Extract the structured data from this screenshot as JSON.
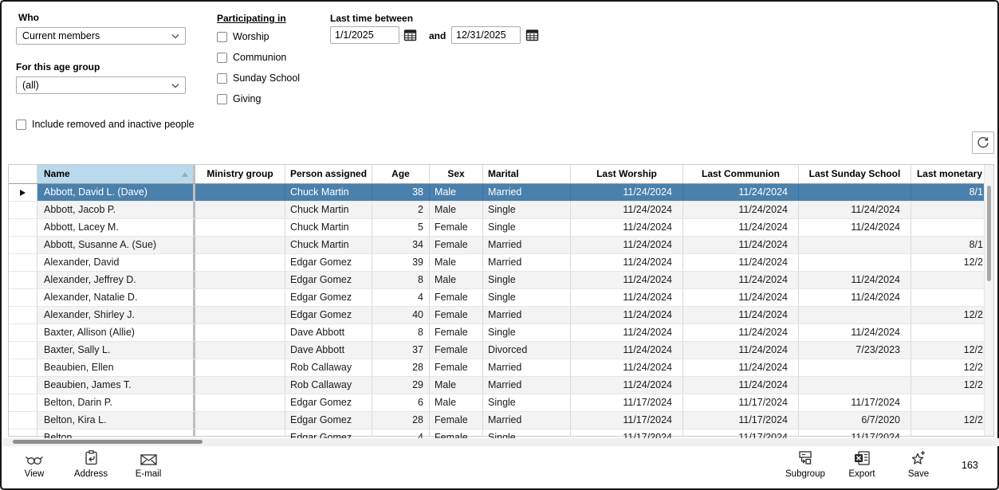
{
  "filters": {
    "who": {
      "label": "Who",
      "value": "Current members"
    },
    "age_group": {
      "label": "For this age group",
      "value": "(all)"
    },
    "participating_in": {
      "label": "Participating in",
      "options": [
        {
          "label": "Worship",
          "checked": false
        },
        {
          "label": "Communion",
          "checked": false
        },
        {
          "label": "Sunday School",
          "checked": false
        },
        {
          "label": "Giving",
          "checked": false
        }
      ]
    },
    "last_time_between": {
      "label": "Last time between",
      "from": "1/1/2025",
      "conjunction": "and",
      "to": "12/31/2025"
    },
    "include_removed": {
      "label": "Include removed and inactive people",
      "checked": false
    }
  },
  "table": {
    "columns": [
      "Name",
      "Ministry group",
      "Person assigned",
      "Age",
      "Sex",
      "Marital",
      "Last Worship",
      "Last Communion",
      "Last Sunday School",
      "Last monetary"
    ],
    "sort": {
      "column": "Name",
      "direction": "ascending"
    },
    "rows": [
      {
        "selected": true,
        "name": "Abbott, David L. (Dave)",
        "ministry_group": "",
        "person_assigned": "Chuck Martin",
        "age": "38",
        "sex": "Male",
        "marital": "Married",
        "last_worship": "11/24/2024",
        "last_communion": "11/24/2024",
        "last_sunday_school": "",
        "last_monetary": "8/1"
      },
      {
        "name": "Abbott, Jacob P.",
        "ministry_group": "",
        "person_assigned": "Chuck Martin",
        "age": "2",
        "sex": "Male",
        "marital": "Single",
        "last_worship": "11/24/2024",
        "last_communion": "11/24/2024",
        "last_sunday_school": "11/24/2024",
        "last_monetary": ""
      },
      {
        "name": "Abbott, Lacey M.",
        "ministry_group": "",
        "person_assigned": "Chuck Martin",
        "age": "5",
        "sex": "Female",
        "marital": "Single",
        "last_worship": "11/24/2024",
        "last_communion": "11/24/2024",
        "last_sunday_school": "11/24/2024",
        "last_monetary": ""
      },
      {
        "name": "Abbott, Susanne A. (Sue)",
        "ministry_group": "",
        "person_assigned": "Chuck Martin",
        "age": "34",
        "sex": "Female",
        "marital": "Married",
        "last_worship": "11/24/2024",
        "last_communion": "11/24/2024",
        "last_sunday_school": "",
        "last_monetary": "8/1"
      },
      {
        "name": "Alexander, David",
        "ministry_group": "",
        "person_assigned": "Edgar Gomez",
        "age": "39",
        "sex": "Male",
        "marital": "Married",
        "last_worship": "11/24/2024",
        "last_communion": "11/24/2024",
        "last_sunday_school": "",
        "last_monetary": "12/2"
      },
      {
        "name": "Alexander, Jeffrey D.",
        "ministry_group": "",
        "person_assigned": "Edgar Gomez",
        "age": "8",
        "sex": "Male",
        "marital": "Single",
        "last_worship": "11/24/2024",
        "last_communion": "11/24/2024",
        "last_sunday_school": "11/24/2024",
        "last_monetary": ""
      },
      {
        "name": "Alexander, Natalie D.",
        "ministry_group": "",
        "person_assigned": "Edgar Gomez",
        "age": "4",
        "sex": "Female",
        "marital": "Single",
        "last_worship": "11/24/2024",
        "last_communion": "11/24/2024",
        "last_sunday_school": "11/24/2024",
        "last_monetary": ""
      },
      {
        "name": "Alexander, Shirley J.",
        "ministry_group": "",
        "person_assigned": "Edgar Gomez",
        "age": "40",
        "sex": "Female",
        "marital": "Married",
        "last_worship": "11/24/2024",
        "last_communion": "11/24/2024",
        "last_sunday_school": "",
        "last_monetary": "12/2"
      },
      {
        "name": "Baxter, Allison (Allie)",
        "ministry_group": "",
        "person_assigned": "Dave Abbott",
        "age": "8",
        "sex": "Female",
        "marital": "Single",
        "last_worship": "11/24/2024",
        "last_communion": "11/24/2024",
        "last_sunday_school": "11/24/2024",
        "last_monetary": ""
      },
      {
        "name": "Baxter, Sally L.",
        "ministry_group": "",
        "person_assigned": "Dave Abbott",
        "age": "37",
        "sex": "Female",
        "marital": "Divorced",
        "last_worship": "11/24/2024",
        "last_communion": "11/24/2024",
        "last_sunday_school": "7/23/2023",
        "last_monetary": "12/2"
      },
      {
        "name": "Beaubien, Ellen",
        "ministry_group": "",
        "person_assigned": "Rob Callaway",
        "age": "28",
        "sex": "Female",
        "marital": "Married",
        "last_worship": "11/24/2024",
        "last_communion": "11/24/2024",
        "last_sunday_school": "",
        "last_monetary": "12/2"
      },
      {
        "name": "Beaubien, James T.",
        "ministry_group": "",
        "person_assigned": "Rob Callaway",
        "age": "29",
        "sex": "Male",
        "marital": "Married",
        "last_worship": "11/24/2024",
        "last_communion": "11/24/2024",
        "last_sunday_school": "",
        "last_monetary": "12/2"
      },
      {
        "name": "Belton, Darin P.",
        "ministry_group": "",
        "person_assigned": "Edgar Gomez",
        "age": "6",
        "sex": "Male",
        "marital": "Single",
        "last_worship": "11/17/2024",
        "last_communion": "11/17/2024",
        "last_sunday_school": "11/17/2024",
        "last_monetary": ""
      },
      {
        "name": "Belton, Kira L.",
        "ministry_group": "",
        "person_assigned": "Edgar Gomez",
        "age": "28",
        "sex": "Female",
        "marital": "Married",
        "last_worship": "11/17/2024",
        "last_communion": "11/17/2024",
        "last_sunday_school": "6/7/2020",
        "last_monetary": "12/2"
      },
      {
        "partial": true,
        "name": "Belton,",
        "ministry_group": "",
        "person_assigned": "Edgar Gomez",
        "age": "4",
        "sex": "Female",
        "marital": "Single",
        "last_worship": "11/17/2024",
        "last_communion": "11/17/2024",
        "last_sunday_school": "11/17/2024",
        "last_monetary": ""
      }
    ]
  },
  "toolbar": {
    "left": [
      {
        "label": "View",
        "icon": "glasses-icon"
      },
      {
        "label": "Address",
        "icon": "clipboard-arrow-icon"
      },
      {
        "label": "E-mail",
        "icon": "envelope-icon"
      }
    ],
    "right": [
      {
        "label": "Subgroup",
        "icon": "subgroup-icon"
      },
      {
        "label": "Export",
        "icon": "excel-icon"
      },
      {
        "label": "Save",
        "icon": "star-plus-icon"
      }
    ],
    "result_count": "163"
  },
  "colors": {
    "selection_bg": "#4a80ac",
    "selection_text": "#ffffff",
    "sorted_header_bg": "#b9d9ec",
    "row_alt_bg": "#f3f3f3",
    "grid_line": "#d9d9d9"
  }
}
